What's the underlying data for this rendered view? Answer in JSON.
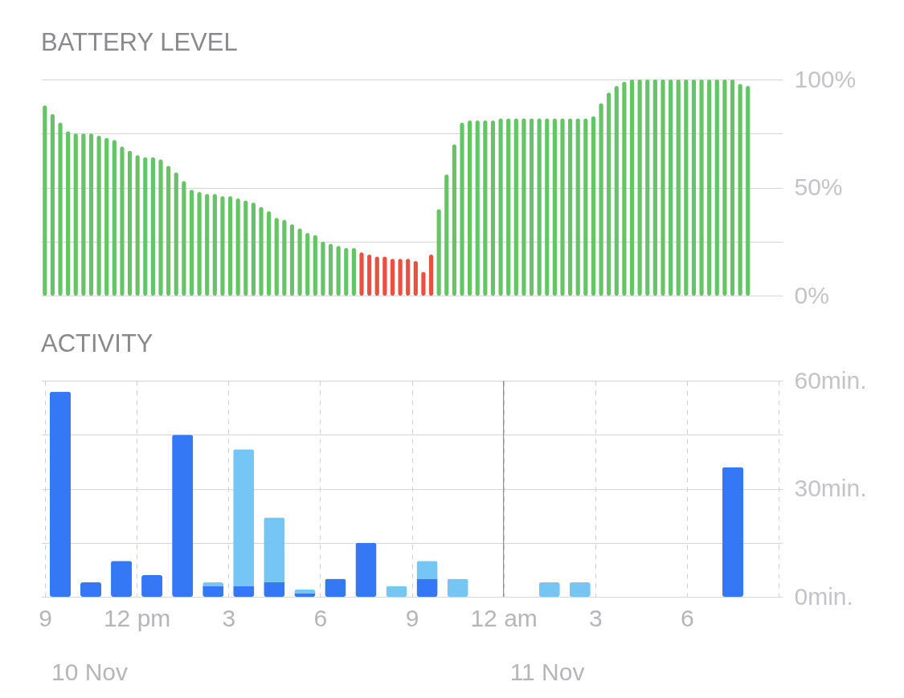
{
  "chart_data": [
    {
      "type": "bar",
      "title": "BATTERY LEVEL",
      "categories": [
        null,
        null,
        null,
        null,
        null,
        null,
        null,
        null,
        null,
        null,
        null,
        null,
        null,
        null,
        null,
        null,
        null,
        null,
        null,
        null,
        null,
        null,
        null,
        null,
        null,
        null,
        null,
        null,
        null,
        null,
        null,
        null,
        null,
        null,
        null,
        null,
        null,
        null,
        null,
        null,
        null,
        null,
        null,
        null,
        null,
        null,
        null,
        null,
        null,
        null,
        null,
        null,
        null,
        null,
        null,
        null,
        null,
        null,
        null,
        null,
        null,
        null,
        null,
        null,
        null,
        null,
        null,
        null,
        null,
        null,
        null,
        null,
        null,
        null,
        null,
        null,
        null,
        null,
        null,
        null,
        null,
        null,
        null,
        null,
        null,
        null,
        null,
        null,
        null,
        null,
        null,
        null,
        null,
        null,
        null,
        null
      ],
      "values": [
        88,
        84,
        80,
        76,
        75,
        75,
        75,
        74,
        73,
        72,
        69,
        67,
        65,
        64,
        64,
        63,
        60,
        57,
        53,
        49,
        48,
        47,
        47,
        46,
        46,
        45,
        44,
        43,
        41,
        39,
        36,
        35,
        33,
        31,
        29,
        28,
        25,
        24,
        23,
        22,
        22,
        20,
        19,
        18,
        18,
        17,
        17,
        17,
        16,
        11,
        19,
        40,
        56,
        70,
        80,
        81,
        81,
        81,
        81,
        82,
        82,
        82,
        82,
        82,
        82,
        82,
        82,
        82,
        82,
        82,
        82,
        83,
        89,
        94,
        97,
        99,
        100,
        100,
        100,
        100,
        100,
        100,
        100,
        100,
        100,
        100,
        100,
        100,
        100,
        100,
        98,
        97,
        null,
        null,
        null,
        null
      ],
      "colors": [
        "#65c466",
        "#65c466",
        "#65c466",
        "#65c466",
        "#65c466",
        "#65c466",
        "#65c466",
        "#65c466",
        "#65c466",
        "#65c466",
        "#65c466",
        "#65c466",
        "#65c466",
        "#65c466",
        "#65c466",
        "#65c466",
        "#65c466",
        "#65c466",
        "#65c466",
        "#65c466",
        "#65c466",
        "#65c466",
        "#65c466",
        "#65c466",
        "#65c466",
        "#65c466",
        "#65c466",
        "#65c466",
        "#65c466",
        "#65c466",
        "#65c466",
        "#65c466",
        "#65c466",
        "#65c466",
        "#65c466",
        "#65c466",
        "#65c466",
        "#65c466",
        "#65c466",
        "#65c466",
        "#65c466",
        "#e9503f",
        "#e9503f",
        "#e9503f",
        "#e9503f",
        "#e9503f",
        "#e9503f",
        "#e9503f",
        "#e9503f",
        "#e9503f",
        "#e9503f",
        "#65c466",
        "#65c466",
        "#65c466",
        "#65c466",
        "#65c466",
        "#65c466",
        "#65c466",
        "#65c466",
        "#65c466",
        "#65c466",
        "#65c466",
        "#65c466",
        "#65c466",
        "#65c466",
        "#65c466",
        "#65c466",
        "#65c466",
        "#65c466",
        "#65c466",
        "#65c466",
        "#65c466",
        "#65c466",
        "#65c466",
        "#65c466",
        "#65c466",
        "#65c466",
        "#65c466",
        "#65c466",
        "#65c466",
        "#65c466",
        "#65c466",
        "#65c466",
        "#65c466",
        "#65c466",
        "#65c466",
        "#65c466",
        "#65c466",
        "#65c466",
        "#65c466",
        "#65c466",
        "#65c466",
        "#65c466",
        "#65c466",
        "#65c466",
        "#65c466"
      ],
      "ylim": [
        0,
        100
      ],
      "yticks": [
        {
          "value": 0,
          "label": "0%"
        },
        {
          "value": 25,
          "label": null
        },
        {
          "value": 50,
          "label": "50%"
        },
        {
          "value": 75,
          "label": null
        },
        {
          "value": 100,
          "label": "100%"
        }
      ],
      "grid": "y",
      "tick_labels": "y"
    },
    {
      "type": "bar",
      "title": "ACTIVITY",
      "x": [
        "--11-10T09:30",
        "--11-10T10:30",
        "--11-10T11:30",
        "--11-10T12:30",
        "--11-10T13:30",
        "--11-10T14:30",
        "--11-10T15:30",
        "--11-10T16:30",
        "--11-10T17:30",
        "--11-10T18:30",
        "--11-10T19:30",
        "--11-10T20:30",
        "--11-10T21:30",
        "--11-10T22:30",
        "--11-10T23:30",
        "--11-11T00:30",
        "--11-11T01:30",
        "--11-11T02:30",
        "--11-11T03:30",
        "--11-11T04:30",
        "--11-11T05:30",
        "--11-11T06:30",
        "--11-11T07:30",
        "--11-11T08:30"
      ],
      "series": [
        {
          "color": "#3478f6",
          "values": [
            57,
            4,
            10,
            6,
            45,
            3,
            3,
            4,
            1,
            5,
            15,
            0,
            5,
            0,
            0,
            0,
            0,
            0,
            0,
            0,
            0,
            0,
            36,
            0
          ]
        },
        {
          "color": "#76c6f5",
          "values": [
            0,
            0,
            0,
            0,
            0,
            1,
            38,
            18,
            1,
            0,
            0,
            3,
            5,
            5,
            0,
            0,
            4,
            4,
            0,
            0,
            0,
            0,
            0,
            0
          ]
        }
      ],
      "stacked": true,
      "xlim": [
        "--11-10T09:00",
        "--11-11T09:00"
      ],
      "xticks": [
        {
          "value": "--11-10T09:00",
          "label": "9"
        },
        {
          "value": "--11-10T12:00",
          "label": "12 pm"
        },
        {
          "value": "--11-10T15:00",
          "label": "3"
        },
        {
          "value": "--11-10T18:00",
          "label": "6"
        },
        {
          "value": "--11-10T21:00",
          "label": "9"
        },
        {
          "value": "--11-11T00:00",
          "label": "12 am"
        },
        {
          "value": "--11-11T03:00",
          "label": "3"
        },
        {
          "value": "--11-11T06:00",
          "label": "6"
        },
        {
          "value": "--11-11T09:00",
          "label": null
        }
      ],
      "ylim": [
        0,
        60
      ],
      "yticks": [
        {
          "value": 0,
          "label": "0min."
        },
        {
          "value": 15,
          "label": null
        },
        {
          "value": 30,
          "label": "30min."
        },
        {
          "value": 45,
          "label": null
        },
        {
          "value": 60,
          "label": "60min."
        }
      ],
      "grid": true,
      "ref_lines": [
        {
          "axis": "x",
          "value": "--11-11T00:00"
        }
      ],
      "annotations": [
        "10 Nov",
        "11 Nov"
      ]
    }
  ]
}
